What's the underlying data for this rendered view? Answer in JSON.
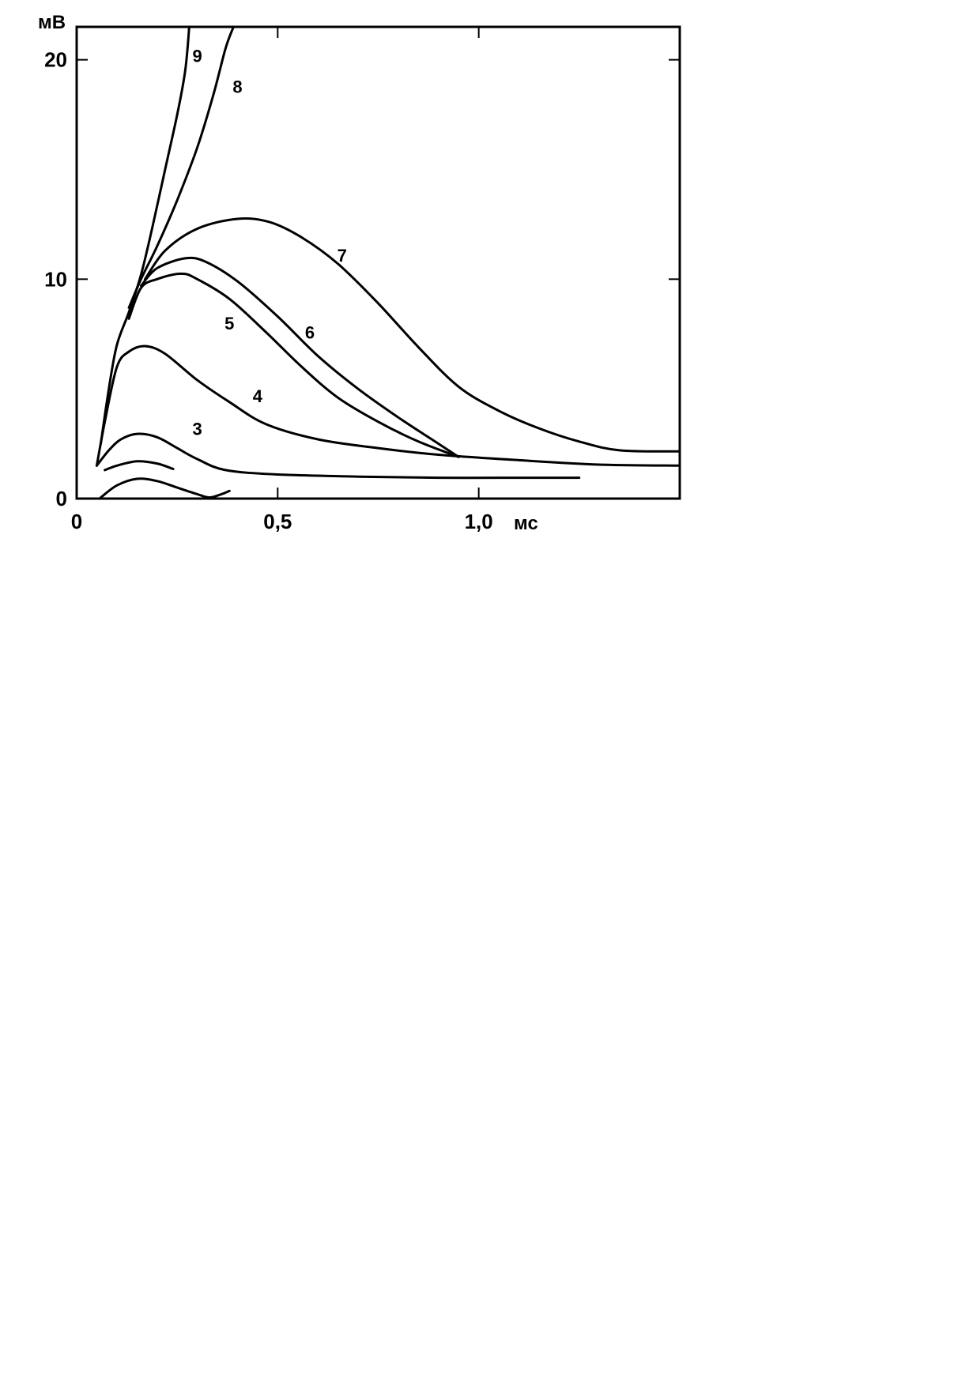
{
  "chart_data": {
    "type": "line",
    "title": "",
    "xlabel": "мс",
    "ylabel": "мВ",
    "xlim": [
      0,
      1.5
    ],
    "ylim": [
      0,
      21.5
    ],
    "grid": false,
    "x_ticks": [
      {
        "value": 0,
        "label": "0"
      },
      {
        "value": 0.5,
        "label": "0,5"
      },
      {
        "value": 1.0,
        "label": "1,0"
      }
    ],
    "y_ticks": [
      {
        "value": 0,
        "label": "0"
      },
      {
        "value": 10,
        "label": "10"
      },
      {
        "value": 20,
        "label": "20"
      }
    ],
    "series": [
      {
        "name": "",
        "points": [
          [
            0.06,
            0.05
          ],
          [
            0.1,
            0.6
          ],
          [
            0.15,
            0.9
          ],
          [
            0.2,
            0.8
          ],
          [
            0.25,
            0.5
          ],
          [
            0.3,
            0.2
          ],
          [
            0.33,
            0.05
          ],
          [
            0.36,
            0.2
          ],
          [
            0.38,
            0.35
          ]
        ]
      },
      {
        "name": "",
        "points": [
          [
            0.07,
            1.3
          ],
          [
            0.1,
            1.5
          ],
          [
            0.15,
            1.7
          ],
          [
            0.2,
            1.6
          ],
          [
            0.24,
            1.35
          ]
        ]
      },
      {
        "name": "3",
        "label_at": [
          0.3,
          2.9
        ],
        "points": [
          [
            0.05,
            1.5
          ],
          [
            0.08,
            2.2
          ],
          [
            0.11,
            2.7
          ],
          [
            0.15,
            2.95
          ],
          [
            0.2,
            2.8
          ],
          [
            0.25,
            2.3
          ],
          [
            0.3,
            1.8
          ],
          [
            0.37,
            1.3
          ],
          [
            0.5,
            1.1
          ],
          [
            0.7,
            1.0
          ],
          [
            0.9,
            0.95
          ],
          [
            1.1,
            0.95
          ],
          [
            1.25,
            0.95
          ]
        ]
      },
      {
        "name": "4",
        "label_at": [
          0.45,
          4.4
        ],
        "points": [
          [
            0.05,
            1.5
          ],
          [
            0.07,
            3.5
          ],
          [
            0.1,
            6.0
          ],
          [
            0.13,
            6.7
          ],
          [
            0.17,
            6.95
          ],
          [
            0.22,
            6.6
          ],
          [
            0.3,
            5.4
          ],
          [
            0.38,
            4.4
          ],
          [
            0.47,
            3.4
          ],
          [
            0.6,
            2.7
          ],
          [
            0.75,
            2.3
          ],
          [
            0.9,
            2.0
          ],
          [
            1.1,
            1.75
          ],
          [
            1.3,
            1.55
          ],
          [
            1.5,
            1.5
          ]
        ]
      },
      {
        "name": "5",
        "label_at": [
          0.38,
          7.7
        ],
        "points": [
          [
            0.13,
            8.2
          ],
          [
            0.16,
            9.6
          ],
          [
            0.2,
            10.0
          ],
          [
            0.26,
            10.25
          ],
          [
            0.3,
            10.0
          ],
          [
            0.38,
            9.1
          ],
          [
            0.47,
            7.6
          ],
          [
            0.56,
            6.0
          ],
          [
            0.65,
            4.6
          ],
          [
            0.75,
            3.5
          ],
          [
            0.85,
            2.6
          ],
          [
            0.95,
            1.9
          ]
        ]
      },
      {
        "name": "6",
        "label_at": [
          0.58,
          7.3
        ],
        "points": [
          [
            0.16,
            9.7
          ],
          [
            0.2,
            10.5
          ],
          [
            0.27,
            10.95
          ],
          [
            0.32,
            10.8
          ],
          [
            0.4,
            9.9
          ],
          [
            0.5,
            8.3
          ],
          [
            0.6,
            6.5
          ],
          [
            0.7,
            5.0
          ],
          [
            0.8,
            3.7
          ],
          [
            0.9,
            2.5
          ],
          [
            0.95,
            1.9
          ]
        ]
      },
      {
        "name": "7",
        "label_at": [
          0.66,
          10.8
        ],
        "points": [
          [
            0.17,
            10.0
          ],
          [
            0.22,
            11.3
          ],
          [
            0.3,
            12.3
          ],
          [
            0.4,
            12.75
          ],
          [
            0.48,
            12.6
          ],
          [
            0.56,
            11.9
          ],
          [
            0.65,
            10.7
          ],
          [
            0.75,
            8.9
          ],
          [
            0.85,
            6.9
          ],
          [
            0.95,
            5.1
          ],
          [
            1.05,
            4.0
          ],
          [
            1.15,
            3.2
          ],
          [
            1.25,
            2.6
          ],
          [
            1.35,
            2.2
          ],
          [
            1.5,
            2.15
          ]
        ]
      },
      {
        "name": "8",
        "label_at": [
          0.4,
          18.5
        ],
        "points": [
          [
            0.13,
            8.7
          ],
          [
            0.16,
            10.0
          ],
          [
            0.2,
            11.5
          ],
          [
            0.25,
            13.6
          ],
          [
            0.3,
            16.0
          ],
          [
            0.34,
            18.4
          ],
          [
            0.37,
            20.5
          ],
          [
            0.39,
            21.5
          ]
        ]
      },
      {
        "name": "9",
        "label_at": [
          0.3,
          19.9
        ],
        "points": [
          [
            0.06,
            2.5
          ],
          [
            0.08,
            5.0
          ],
          [
            0.1,
            7.0
          ],
          [
            0.13,
            8.5
          ],
          [
            0.16,
            10.2
          ],
          [
            0.19,
            12.5
          ],
          [
            0.22,
            15.0
          ],
          [
            0.25,
            17.5
          ],
          [
            0.27,
            19.5
          ],
          [
            0.28,
            21.5
          ]
        ]
      }
    ]
  }
}
